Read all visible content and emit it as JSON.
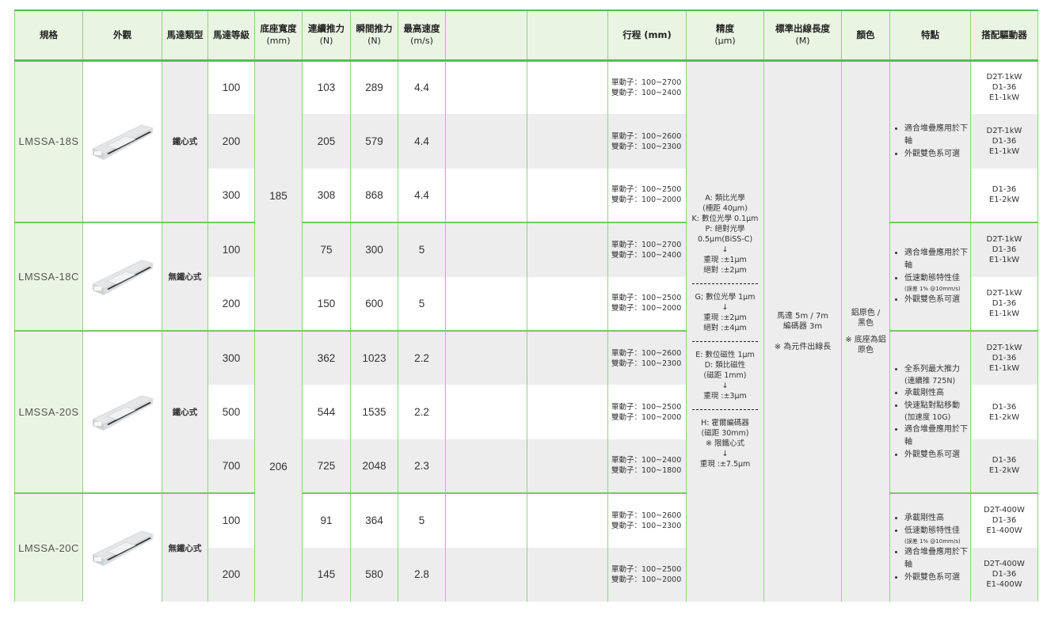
{
  "header": [
    {
      "label": "規格",
      "sub": ""
    },
    {
      "label": "外觀",
      "sub": ""
    },
    {
      "label": "馬達類型",
      "sub": ""
    },
    {
      "label": "馬達等級",
      "sub": ""
    },
    {
      "label": "底座寬度",
      "sub": "(mm)"
    },
    {
      "label": "連續推力",
      "sub": "(N)"
    },
    {
      "label": "瞬間推力",
      "sub": "(N)"
    },
    {
      "label": "最高速度",
      "sub": "(m/s)"
    },
    {
      "label": "",
      "sub": ""
    },
    {
      "label": "",
      "sub": ""
    },
    {
      "label": "行程 (mm)",
      "sub": ""
    },
    {
      "label": "精度",
      "sub": "(μm)"
    },
    {
      "label": "標準出線長度",
      "sub": "(M)"
    },
    {
      "label": "顏色",
      "sub": ""
    },
    {
      "label": "特點",
      "sub": ""
    },
    {
      "label": "搭配驅動器",
      "sub": ""
    }
  ],
  "base_widths": [
    "185",
    "206"
  ],
  "groups": [
    {
      "model": "LMSSA-18S",
      "motor_type": "鐵心式",
      "features": [
        {
          "text": "適合堆疊應用於下軸",
          "note": ""
        },
        {
          "text": "外觀雙色系可選",
          "note": ""
        }
      ],
      "rows": [
        {
          "grade": "100",
          "cont": "103",
          "peak": "289",
          "speed": "4.4",
          "stroke": [
            "單動子：100~2700",
            "雙動子：100~2400"
          ],
          "drivers": [
            "D2T-1kW",
            "D1-36",
            "E1-1kW"
          ]
        },
        {
          "grade": "200",
          "cont": "205",
          "peak": "579",
          "speed": "4.4",
          "stroke": [
            "單動子：100~2600",
            "雙動子：100~2300"
          ],
          "drivers": [
            "D2T-1kW",
            "D1-36",
            "E1-1kW"
          ]
        },
        {
          "grade": "300",
          "cont": "308",
          "peak": "868",
          "speed": "4.4",
          "stroke": [
            "單動子：100~2500",
            "雙動子：100~2000"
          ],
          "drivers": [
            "D1-36",
            "E1-2kW"
          ]
        }
      ]
    },
    {
      "model": "LMSSA-18C",
      "motor_type": "無鐵心式",
      "features": [
        {
          "text": "適合堆疊應用於下軸",
          "note": ""
        },
        {
          "text": "低速動態特性佳",
          "note": "(誤差 1% @10mm/s)"
        },
        {
          "text": "外觀雙色系可選",
          "note": ""
        }
      ],
      "rows": [
        {
          "grade": "100",
          "cont": "75",
          "peak": "300",
          "speed": "5",
          "stroke": [
            "單動子：100~2700",
            "雙動子：100~2400"
          ],
          "drivers": [
            "D2T-1kW",
            "D1-36",
            "E1-1kW"
          ]
        },
        {
          "grade": "200",
          "cont": "150",
          "peak": "600",
          "speed": "5",
          "stroke": [
            "單動子：100~2500",
            "雙動子：100~2000"
          ],
          "drivers": [
            "D2T-1kW",
            "D1-36",
            "E1-1kW"
          ]
        }
      ]
    },
    {
      "model": "LMSSA-20S",
      "motor_type": "鐵心式",
      "features": [
        {
          "text": "全系列最大推力",
          "note": "(連續推 725N)",
          "big": true
        },
        {
          "text": "承載剛性高",
          "note": ""
        },
        {
          "text": "快速點對點移動",
          "note": "(加速度 10G)",
          "big": true
        },
        {
          "text": "適合堆疊應用於下軸",
          "note": ""
        },
        {
          "text": "外觀雙色系可選",
          "note": ""
        }
      ],
      "rows": [
        {
          "grade": "300",
          "cont": "362",
          "peak": "1023",
          "speed": "2.2",
          "stroke": [
            "單動子：100~2600",
            "雙動子：100~2300"
          ],
          "drivers": [
            "D2T-1kW",
            "D1-36",
            "E1-1kW"
          ]
        },
        {
          "grade": "500",
          "cont": "544",
          "peak": "1535",
          "speed": "2.2",
          "stroke": [
            "單動子：100~2500",
            "雙動子：100~2000"
          ],
          "drivers": [
            "D1-36",
            "E1-2kW"
          ]
        },
        {
          "grade": "700",
          "cont": "725",
          "peak": "2048",
          "speed": "2.3",
          "stroke": [
            "單動子：100~2400",
            "雙動子：100~1800"
          ],
          "drivers": [
            "D1-36",
            "E1-2kW"
          ]
        }
      ]
    },
    {
      "model": "LMSSA-20C",
      "motor_type": "無鐵心式",
      "features": [
        {
          "text": "承載剛性高",
          "note": ""
        },
        {
          "text": "低速動態特性佳",
          "note": "(誤差 1% @10mm/s)"
        },
        {
          "text": "適合堆疊應用於下軸",
          "note": ""
        },
        {
          "text": "外觀雙色系可選",
          "note": ""
        }
      ],
      "rows": [
        {
          "grade": "100",
          "cont": "91",
          "peak": "364",
          "speed": "5",
          "stroke": [
            "單動子：100~2600",
            "雙動子：100~2300"
          ],
          "drivers": [
            "D2T-400W",
            "D1-36",
            "E1-400W"
          ]
        },
        {
          "grade": "200",
          "cont": "145",
          "peak": "580",
          "speed": "2.8",
          "stroke": [
            "單動子：100~2500",
            "雙動子：100~2000"
          ],
          "drivers": [
            "D2T-400W",
            "D1-36",
            "E1-400W"
          ]
        }
      ]
    }
  ],
  "precision": [
    [
      "A: 類比光學",
      "(柵距 40μm)",
      "K: 數位光學 0.1μm",
      "P: 絕對光學",
      "0.5μm(BiSS-C)",
      "↓",
      "重現 :±1μm",
      "絕對 :±2μm"
    ],
    [
      "G; 數位光學 1μm",
      "↓",
      "重現 :±2μm",
      "絕對 :±4μm"
    ],
    [
      "E: 數位磁性 1μm",
      "D: 類比磁性",
      "(磁距 1mm)",
      "↓",
      "重現 :±3μm"
    ],
    [
      "H: 霍爾編碼器",
      "(磁距 30mm)",
      "※ 限鐵心式",
      "↓",
      "重現 :±7.5μm"
    ]
  ],
  "cable": [
    "馬達 5m / 7m",
    "編碼器 3m",
    "",
    "※ 為元件出線長"
  ],
  "color": [
    "鋁原色 /",
    "黑色",
    "※ 底座為鋁",
    "原色"
  ],
  "colors": {
    "border": "#94d084",
    "group_line": "#7cc46a",
    "header_bg": "#e9f4e2",
    "stripe": "#ededed"
  }
}
